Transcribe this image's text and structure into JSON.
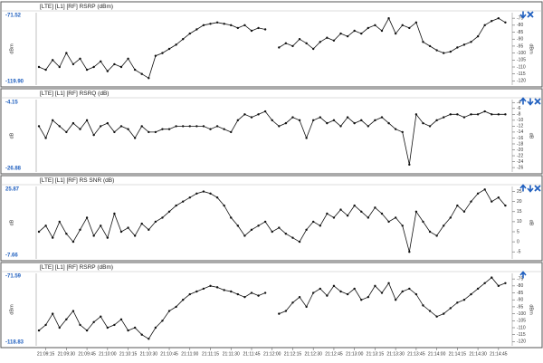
{
  "chart_data": [
    {
      "type": "line",
      "title": "[LTE] [L1] [RF] RSRP (dBm)",
      "y_label": "dBm",
      "range_labels": {
        "max": "-71.52",
        "min": "-119.90"
      },
      "color": "#111111",
      "x": [
        "21:09:10",
        "21:09:15",
        "21:09:20",
        "21:09:25",
        "21:09:30",
        "21:09:35",
        "21:09:40",
        "21:09:45",
        "21:09:50",
        "21:09:55",
        "21:10:00",
        "21:10:05",
        "21:10:10",
        "21:10:15",
        "21:10:20",
        "21:10:25",
        "21:10:30",
        "21:10:35",
        "21:10:40",
        "21:10:45",
        "21:10:50",
        "21:10:55",
        "21:11:00",
        "21:11:05",
        "21:11:10",
        "21:11:15",
        "21:11:20",
        "21:11:25",
        "21:11:30",
        "21:11:35",
        "21:11:40",
        "21:11:45",
        "21:11:50",
        "21:11:55",
        "21:12:00",
        "21:12:05",
        "21:12:10",
        "21:12:15",
        "21:12:20",
        "21:12:25",
        "21:12:30",
        "21:12:35",
        "21:12:40",
        "21:12:45",
        "21:12:50",
        "21:12:55",
        "21:13:00",
        "21:13:05",
        "21:13:10",
        "21:13:15",
        "21:13:20",
        "21:13:25",
        "21:13:30",
        "21:13:35",
        "21:13:40",
        "21:13:45",
        "21:13:50",
        "21:13:55",
        "21:14:00",
        "21:14:05",
        "21:14:10",
        "21:14:15",
        "21:14:20",
        "21:14:25",
        "21:14:30",
        "21:14:35",
        "21:14:40",
        "21:14:45",
        "21:14:50"
      ],
      "values": [
        -110,
        -112,
        -105,
        -110,
        -100,
        -108,
        -104,
        -112,
        -110,
        -106,
        -113,
        -108,
        -110,
        -104,
        -112,
        -115,
        -118,
        -102,
        -100,
        -97,
        -94,
        -90,
        -86,
        -83,
        -80,
        -79,
        -78,
        -79,
        -80,
        -82,
        -80,
        -84,
        -82,
        -83,
        null,
        -96,
        -93,
        -95,
        -90,
        -93,
        -97,
        -92,
        -89,
        -91,
        -86,
        -88,
        -84,
        -86,
        -82,
        -80,
        -84,
        -75,
        -86,
        -80,
        -82,
        -78,
        -92,
        -95,
        -98,
        -100,
        -99,
        -96,
        -94,
        -92,
        -88,
        -80,
        -77,
        -75,
        -78
      ],
      "xlim": [
        "21:09:08",
        "21:14:55"
      ],
      "ylim": [
        -123,
        -71
      ],
      "yticks": [
        -75,
        -80,
        -85,
        -90,
        -95,
        -100,
        -105,
        -110,
        -115,
        -120
      ]
    },
    {
      "type": "line",
      "title": "[LTE] [L1] [RF] RSRQ (dB)",
      "y_label": "dB",
      "range_labels": {
        "max": "-4.15",
        "min": "-26.88"
      },
      "color": "#111111",
      "x": [
        "21:09:10",
        "21:09:15",
        "21:09:20",
        "21:09:25",
        "21:09:30",
        "21:09:35",
        "21:09:40",
        "21:09:45",
        "21:09:50",
        "21:09:55",
        "21:10:00",
        "21:10:05",
        "21:10:10",
        "21:10:15",
        "21:10:20",
        "21:10:25",
        "21:10:30",
        "21:10:35",
        "21:10:40",
        "21:10:45",
        "21:10:50",
        "21:10:55",
        "21:11:00",
        "21:11:05",
        "21:11:10",
        "21:11:15",
        "21:11:20",
        "21:11:25",
        "21:11:30",
        "21:11:35",
        "21:11:40",
        "21:11:45",
        "21:11:50",
        "21:11:55",
        "21:12:00",
        "21:12:05",
        "21:12:10",
        "21:12:15",
        "21:12:20",
        "21:12:25",
        "21:12:30",
        "21:12:35",
        "21:12:40",
        "21:12:45",
        "21:12:50",
        "21:12:55",
        "21:13:00",
        "21:13:05",
        "21:13:10",
        "21:13:15",
        "21:13:20",
        "21:13:25",
        "21:13:30",
        "21:13:35",
        "21:13:40",
        "21:13:45",
        "21:13:50",
        "21:13:55",
        "21:14:00",
        "21:14:05",
        "21:14:10",
        "21:14:15",
        "21:14:20",
        "21:14:25",
        "21:14:30",
        "21:14:35",
        "21:14:40",
        "21:14:45",
        "21:14:50"
      ],
      "values": [
        -12,
        -16,
        -10,
        -12,
        -14,
        -11,
        -13,
        -10,
        -15,
        -12,
        -11,
        -14,
        -12,
        -13,
        -16,
        -12,
        -14,
        -14,
        -13,
        -13,
        -12,
        -12,
        -12,
        -12,
        -12,
        -13,
        -12,
        -13,
        -14,
        -10,
        -8,
        -9,
        -8,
        -7,
        -10,
        -12,
        -11,
        -9,
        -10,
        -16,
        -10,
        -9,
        -11,
        -10,
        -12,
        -9,
        -11,
        -10,
        -12,
        -10,
        -9,
        -11,
        -13,
        -14,
        -25,
        -8,
        -11,
        -12,
        -10,
        -9,
        -8,
        -8,
        -9,
        -8,
        -8,
        -7,
        -8,
        -8,
        -8
      ],
      "xlim": [
        "21:09:08",
        "21:14:55"
      ],
      "ylim": [
        -27.5,
        -3
      ],
      "yticks": [
        -4,
        -6,
        -8,
        -10,
        -12,
        -14,
        -16,
        -18,
        -20,
        -22,
        -24,
        -26
      ]
    },
    {
      "type": "line",
      "title": "[LTE] [L1] [RF] RS SNR (dB)",
      "y_label": "dB",
      "range_labels": {
        "max": "25.87",
        "min": "-7.66"
      },
      "color": "#111111",
      "x": [
        "21:09:10",
        "21:09:15",
        "21:09:20",
        "21:09:25",
        "21:09:30",
        "21:09:35",
        "21:09:40",
        "21:09:45",
        "21:09:50",
        "21:09:55",
        "21:10:00",
        "21:10:05",
        "21:10:10",
        "21:10:15",
        "21:10:20",
        "21:10:25",
        "21:10:30",
        "21:10:35",
        "21:10:40",
        "21:10:45",
        "21:10:50",
        "21:10:55",
        "21:11:00",
        "21:11:05",
        "21:11:10",
        "21:11:15",
        "21:11:20",
        "21:11:25",
        "21:11:30",
        "21:11:35",
        "21:11:40",
        "21:11:45",
        "21:11:50",
        "21:11:55",
        "21:12:00",
        "21:12:05",
        "21:12:10",
        "21:12:15",
        "21:12:20",
        "21:12:25",
        "21:12:30",
        "21:12:35",
        "21:12:40",
        "21:12:45",
        "21:12:50",
        "21:12:55",
        "21:13:00",
        "21:13:05",
        "21:13:10",
        "21:13:15",
        "21:13:20",
        "21:13:25",
        "21:13:30",
        "21:13:35",
        "21:13:40",
        "21:13:45",
        "21:13:50",
        "21:13:55",
        "21:14:00",
        "21:14:05",
        "21:14:10",
        "21:14:15",
        "21:14:20",
        "21:14:25",
        "21:14:30",
        "21:14:35",
        "21:14:40",
        "21:14:45",
        "21:14:50"
      ],
      "values": [
        5,
        8,
        2,
        10,
        4,
        0,
        6,
        12,
        3,
        8,
        2,
        14,
        5,
        7,
        3,
        9,
        6,
        10,
        12,
        15,
        18,
        20,
        22,
        24,
        25,
        24,
        22,
        18,
        12,
        8,
        3,
        6,
        8,
        10,
        5,
        7,
        4,
        2,
        0,
        6,
        10,
        8,
        14,
        12,
        16,
        13,
        18,
        15,
        12,
        17,
        14,
        10,
        12,
        8,
        -5,
        15,
        10,
        5,
        3,
        8,
        12,
        18,
        15,
        20,
        24,
        26,
        20,
        22,
        18
      ],
      "xlim": [
        "21:09:08",
        "21:14:55"
      ],
      "ylim": [
        -8.5,
        27.5
      ],
      "yticks": [
        25,
        20,
        15,
        10,
        5,
        0,
        -5
      ]
    },
    {
      "type": "line",
      "title": "[LTE] [L1] [RF] RSRP (dBm)",
      "y_label": "dBm",
      "range_labels": {
        "max": "-71.59",
        "min": "-118.83"
      },
      "color": "#111111",
      "x": [
        "21:09:10",
        "21:09:15",
        "21:09:20",
        "21:09:25",
        "21:09:30",
        "21:09:35",
        "21:09:40",
        "21:09:45",
        "21:09:50",
        "21:09:55",
        "21:10:00",
        "21:10:05",
        "21:10:10",
        "21:10:15",
        "21:10:20",
        "21:10:25",
        "21:10:30",
        "21:10:35",
        "21:10:40",
        "21:10:45",
        "21:10:50",
        "21:10:55",
        "21:11:00",
        "21:11:05",
        "21:11:10",
        "21:11:15",
        "21:11:20",
        "21:11:25",
        "21:11:30",
        "21:11:35",
        "21:11:40",
        "21:11:45",
        "21:11:50",
        "21:11:55",
        "21:12:00",
        "21:12:05",
        "21:12:10",
        "21:12:15",
        "21:12:20",
        "21:12:25",
        "21:12:30",
        "21:12:35",
        "21:12:40",
        "21:12:45",
        "21:12:50",
        "21:12:55",
        "21:13:00",
        "21:13:05",
        "21:13:10",
        "21:13:15",
        "21:13:20",
        "21:13:25",
        "21:13:30",
        "21:13:35",
        "21:13:40",
        "21:13:45",
        "21:13:50",
        "21:13:55",
        "21:14:00",
        "21:14:05",
        "21:14:10",
        "21:14:15",
        "21:14:20",
        "21:14:25",
        "21:14:30",
        "21:14:35",
        "21:14:40",
        "21:14:45",
        "21:14:50"
      ],
      "values": [
        -112,
        -108,
        -100,
        -110,
        -104,
        -98,
        -108,
        -112,
        -106,
        -102,
        -110,
        -108,
        -104,
        -112,
        -110,
        -115,
        -118,
        -110,
        -105,
        -98,
        -95,
        -90,
        -86,
        -84,
        -82,
        -80,
        -81,
        -83,
        -84,
        -86,
        -88,
        -85,
        -87,
        -85,
        null,
        -100,
        -98,
        -92,
        -88,
        -95,
        -85,
        -82,
        -87,
        -80,
        -84,
        -86,
        -82,
        -90,
        -88,
        -80,
        -85,
        -78,
        -90,
        -84,
        -82,
        -86,
        -94,
        -98,
        -102,
        -100,
        -96,
        -92,
        -90,
        -86,
        -82,
        -78,
        -74,
        -80,
        -78
      ],
      "xlim": [
        "21:09:08",
        "21:14:55"
      ],
      "ylim": [
        -123,
        -71
      ],
      "yticks": [
        -75,
        -80,
        -85,
        -90,
        -95,
        -100,
        -105,
        -110,
        -115,
        -120
      ],
      "xticks": [
        "21:09:15",
        "21:09:30",
        "21:09:45",
        "21:10:00",
        "21:10:15",
        "21:10:30",
        "21:10:45",
        "21:11:00",
        "21:11:15",
        "21:11:30",
        "21:11:45",
        "21:12:00",
        "21:12:15",
        "21:12:30",
        "21:12:45",
        "21:13:00",
        "21:13:15",
        "21:13:30",
        "21:13:45",
        "21:14:00",
        "21:14:15",
        "21:14:30",
        "21:14:45"
      ]
    }
  ]
}
